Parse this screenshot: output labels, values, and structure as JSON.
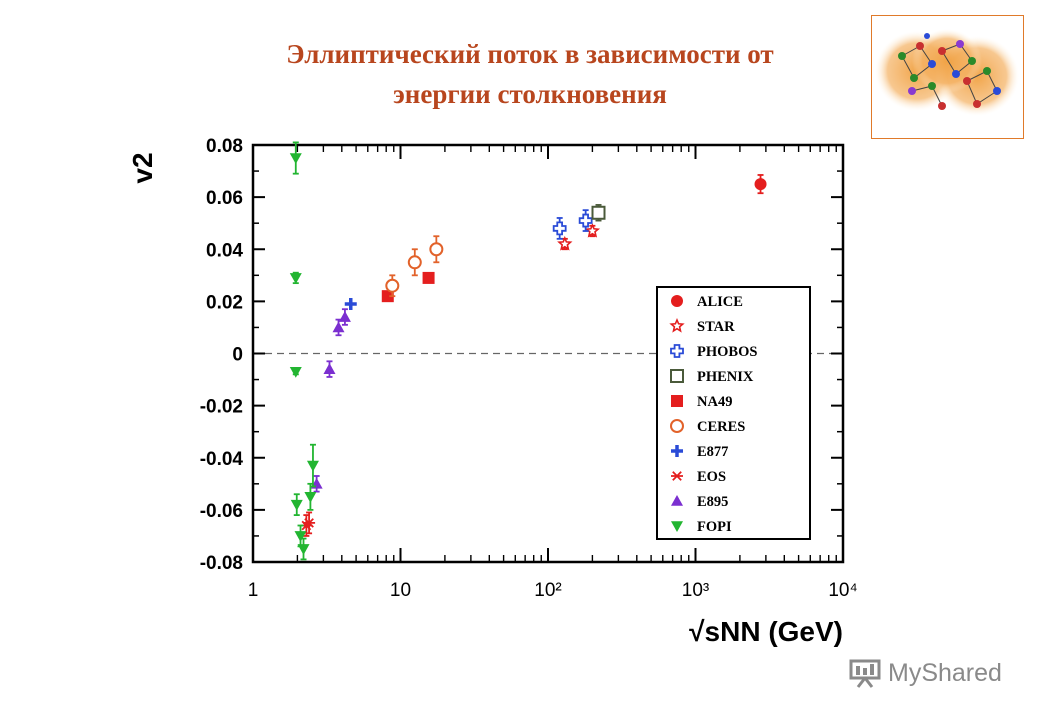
{
  "slide": {
    "title_line1": "Эллиптический поток в зависимости от",
    "title_line2": "энергии столкновения"
  },
  "watermark": {
    "text": "MyShared"
  },
  "thumbnail": {
    "icon": "nucleus-collision-illustration-icon"
  },
  "colors": {
    "title": "#b8461e",
    "alice": "#e41e1e",
    "star": "#e41e1e",
    "phobos": "#2a4bd7",
    "phenix": "#4a5a3a",
    "na49": "#e41e1e",
    "ceres": "#e2622a",
    "e877": "#2a4bd7",
    "eos": "#e41e1e",
    "e895": "#7b2fd0",
    "fopi": "#22b531"
  },
  "chart_data": {
    "type": "scatter",
    "xscale": "log",
    "xlim": [
      1,
      10000
    ],
    "ylim": [
      -0.08,
      0.08
    ],
    "ylabel": "v2",
    "xlabel": "√sNN (GeV)",
    "x_tick_labels": [
      "1",
      "10",
      "10²",
      "10³",
      "10⁴"
    ],
    "y_tick_labels": [
      "0.08",
      "0.06",
      "0.04",
      "0.02",
      "0",
      "-0.02",
      "-0.04",
      "-0.06",
      "-0.08"
    ],
    "zero_line": "dashed",
    "legend_position": "right",
    "series": [
      {
        "name": "ALICE",
        "marker": "circle-filled",
        "color": "#e41e1e",
        "points": [
          {
            "x": 2760,
            "y": 0.065,
            "err": 0.0035
          }
        ]
      },
      {
        "name": "STAR",
        "marker": "star-open",
        "color": "#e41e1e",
        "points": [
          {
            "x": 130,
            "y": 0.042,
            "err": 0.002
          },
          {
            "x": 200,
            "y": 0.047,
            "err": 0.002
          }
        ]
      },
      {
        "name": "PHOBOS",
        "marker": "cross-open",
        "color": "#2a4bd7",
        "points": [
          {
            "x": 120,
            "y": 0.048,
            "err": 0.004
          },
          {
            "x": 180,
            "y": 0.051,
            "err": 0.004
          }
        ]
      },
      {
        "name": "PHENIX",
        "marker": "square-open",
        "color": "#4a5a3a",
        "points": [
          {
            "x": 220,
            "y": 0.054,
            "err": 0.003
          }
        ]
      },
      {
        "name": "NA49",
        "marker": "square-filled",
        "color": "#e41e1e",
        "points": [
          {
            "x": 8.2,
            "y": 0.022,
            "err": 0
          },
          {
            "x": 15.5,
            "y": 0.029,
            "err": 0
          }
        ]
      },
      {
        "name": "CERES",
        "marker": "circle-open",
        "color": "#e2622a",
        "points": [
          {
            "x": 8.8,
            "y": 0.026,
            "err": 0.004
          },
          {
            "x": 12.5,
            "y": 0.035,
            "err": 0.005
          },
          {
            "x": 17.5,
            "y": 0.04,
            "err": 0.005
          }
        ]
      },
      {
        "name": "E877",
        "marker": "plus-filled",
        "color": "#2a4bd7",
        "points": [
          {
            "x": 4.6,
            "y": 0.019,
            "err": 0
          }
        ]
      },
      {
        "name": "EOS",
        "marker": "asterisk",
        "color": "#e41e1e",
        "points": [
          {
            "x": 2.3,
            "y": -0.066,
            "err": 0.004
          },
          {
            "x": 2.4,
            "y": -0.065,
            "err": 0.004
          }
        ]
      },
      {
        "name": "E895",
        "marker": "triangle-up",
        "color": "#7b2fd0",
        "points": [
          {
            "x": 2.7,
            "y": -0.05,
            "err": 0.003
          },
          {
            "x": 3.3,
            "y": -0.006,
            "err": 0.003
          },
          {
            "x": 3.8,
            "y": 0.01,
            "err": 0.003
          },
          {
            "x": 4.2,
            "y": 0.014,
            "err": 0.003
          }
        ]
      },
      {
        "name": "FOPI",
        "marker": "triangle-down",
        "color": "#22b531",
        "points": [
          {
            "x": 1.95,
            "y": 0.075,
            "err": 0.006
          },
          {
            "x": 1.95,
            "y": 0.029,
            "err": 0.002
          },
          {
            "x": 1.95,
            "y": -0.007,
            "err": 0.001
          },
          {
            "x": 1.98,
            "y": -0.058,
            "err": 0.004
          },
          {
            "x": 2.1,
            "y": -0.07,
            "err": 0.004
          },
          {
            "x": 2.2,
            "y": -0.075,
            "err": 0.004
          },
          {
            "x": 2.45,
            "y": -0.055,
            "err": 0.005
          },
          {
            "x": 2.55,
            "y": -0.043,
            "err": 0.008
          }
        ]
      }
    ]
  }
}
